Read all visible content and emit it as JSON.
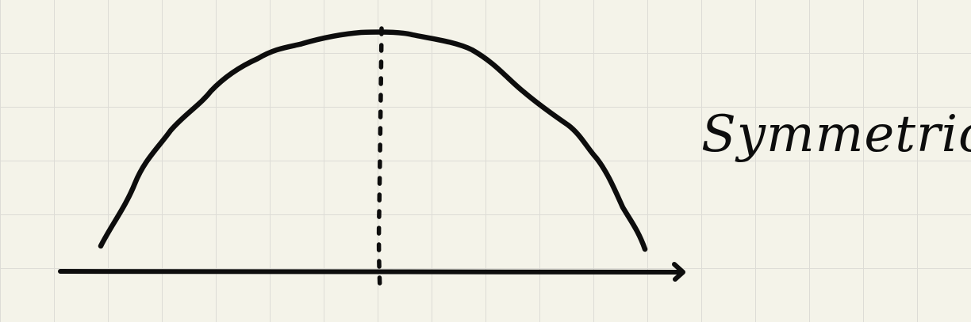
{
  "caption": "Symmetric",
  "colors": {
    "ink": "#0d0d0d",
    "paper": "#f4f3e9",
    "grid": "#dddcd6"
  },
  "icons": {
    "axis_arrow": "arrow-right-icon"
  }
}
